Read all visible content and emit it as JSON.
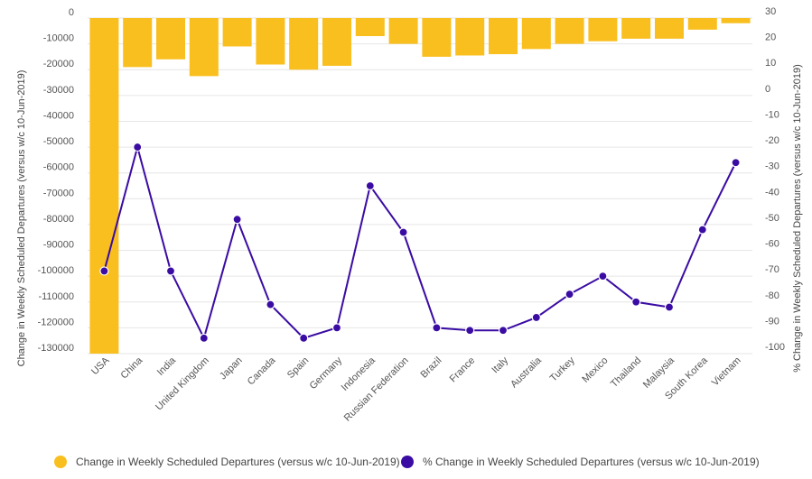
{
  "chart_data": {
    "type": "bar+line",
    "categories": [
      "USA",
      "China",
      "India",
      "United Kingdom",
      "Japan",
      "Canada",
      "Spain",
      "Germany",
      "Indonesia",
      "Russian Federation",
      "Brazil",
      "France",
      "Italy",
      "Australia",
      "Turkey",
      "Mexico",
      "Thailand",
      "Malaysia",
      "South Korea",
      "Vietnam"
    ],
    "series": [
      {
        "name": "Change in Weekly Scheduled Departures (versus w/c 10-Jun-2019)",
        "type": "bar",
        "axis": "left",
        "color": "#F9BF1F",
        "values": [
          -130000,
          -19000,
          -16000,
          -22500,
          -11000,
          -18000,
          -20000,
          -18500,
          -7000,
          -10000,
          -15000,
          -14500,
          -14000,
          -12000,
          -10000,
          -9000,
          -8000,
          -8000,
          -4500,
          -2000
        ]
      },
      {
        "name": "% Change in Weekly Scheduled Departures (versus w/c 10-Jun-2019)",
        "type": "line",
        "axis": "right",
        "color": "#3A0CA3",
        "values": [
          -68,
          -20,
          -68,
          -94,
          -48,
          -81,
          -94,
          -90,
          -35,
          -53,
          -90,
          -91,
          -91,
          -86,
          -77,
          -70,
          -80,
          -82,
          -52,
          -26
        ]
      }
    ],
    "y_left": {
      "label": "Change in Weekly Scheduled Departures (versus w/c 10-Jun-2019)",
      "ticks": [
        0,
        -10000,
        -20000,
        -30000,
        -40000,
        -50000,
        -60000,
        -70000,
        -80000,
        -90000,
        -100000,
        -110000,
        -120000,
        -130000
      ],
      "ylim": [
        -130000,
        0
      ]
    },
    "y_right": {
      "label": "% Change in Weekly Scheduled Departures (versus w/c 10-Jun-2019)",
      "ticks": [
        30,
        20,
        10,
        0,
        -10,
        -20,
        -30,
        -40,
        -50,
        -60,
        -70,
        -80,
        -90,
        -100
      ],
      "ylim": [
        -100,
        30
      ]
    },
    "grid": true,
    "legend_position": "bottom"
  }
}
